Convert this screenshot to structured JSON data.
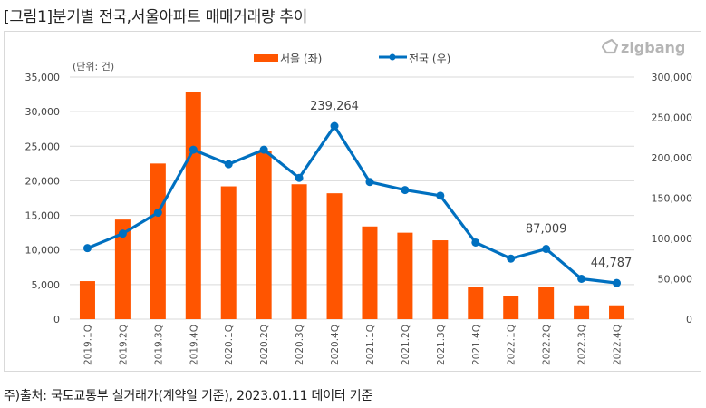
{
  "title": "[그림1]분기별 전국,서울아파트 매매거래량 추이",
  "footnote": "주)출처: 국토교통부 실거래가(계약일 기준), 2023.01.11 데이터 기준",
  "logo": {
    "icon": "zigbang-logo-icon",
    "text": "zigbang"
  },
  "chart_data": {
    "type": "bar+line",
    "title": "[그림1]분기별 전국,서울아파트 매매거래량 추이",
    "unit_label": "(단위: 건)",
    "categories": [
      "2019.1Q",
      "2019.2Q",
      "2019.3Q",
      "2019.4Q",
      "2020.1Q",
      "2020.2Q",
      "2020.3Q",
      "2020.4Q",
      "2021.1Q",
      "2021.2Q",
      "2021.3Q",
      "2021.4Q",
      "2022.1Q",
      "2022.2Q",
      "2022.3Q",
      "2022.4Q"
    ],
    "series": [
      {
        "name": "서울 (좌)",
        "type": "bar",
        "axis": "left",
        "color": "#FF5500",
        "values": [
          5500,
          14400,
          22500,
          32800,
          19200,
          24300,
          19500,
          18200,
          13400,
          12500,
          11400,
          4600,
          3300,
          4600,
          2000,
          2000
        ]
      },
      {
        "name": "전국 (우)",
        "type": "line",
        "axis": "right",
        "color": "#0070C0",
        "values": [
          88000,
          106000,
          132000,
          210000,
          192000,
          210000,
          175000,
          239264,
          170000,
          160000,
          153000,
          95000,
          75000,
          87009,
          50000,
          44787
        ],
        "data_labels": [
          {
            "index": 7,
            "text": "239,264"
          },
          {
            "index": 13,
            "text": "87,009"
          },
          {
            "index": 15,
            "text": "44,787"
          }
        ]
      }
    ],
    "left_axis": {
      "ylim": [
        0,
        35000
      ],
      "ticks": [
        0,
        5000,
        10000,
        15000,
        20000,
        25000,
        30000,
        35000
      ],
      "tick_labels": [
        "0",
        "5,000",
        "10,000",
        "15,000",
        "20,000",
        "25,000",
        "30,000",
        "35,000"
      ]
    },
    "right_axis": {
      "ylim": [
        0,
        300000
      ],
      "ticks": [
        0,
        50000,
        100000,
        150000,
        200000,
        250000,
        300000
      ],
      "tick_labels": [
        "0",
        "50,000",
        "100,000",
        "150,000",
        "200,000",
        "250,000",
        "300,000"
      ]
    },
    "grid": true,
    "legend": {
      "position": "top-center",
      "entries": [
        "서울 (좌)",
        "전국 (우)"
      ]
    },
    "xlabel": "",
    "ylabel": ""
  }
}
